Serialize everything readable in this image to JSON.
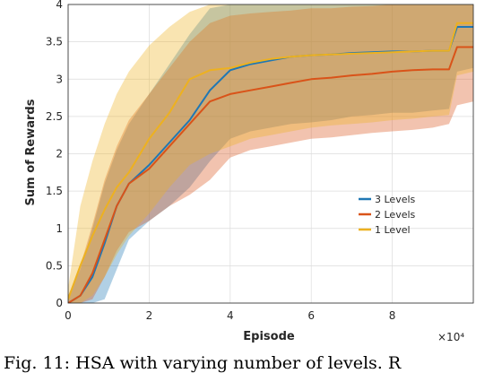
{
  "chart_data": {
    "type": "line",
    "title": "",
    "xlabel": "Episode",
    "ylabel": "Sum of Rewards",
    "x_multiplier_label": "×10⁴",
    "xlim": [
      0,
      10
    ],
    "ylim": [
      0,
      4
    ],
    "xticks": [
      "0",
      "2",
      "4",
      "6",
      "8"
    ],
    "yticks": [
      "0",
      "0.5",
      "1",
      "1.5",
      "2",
      "2.5",
      "3",
      "3.5",
      "4"
    ],
    "grid": true,
    "legend_position": "lower-right",
    "series": [
      {
        "name": "3 Levels",
        "color": "#1f77b4",
        "x": [
          0,
          0.3,
          0.6,
          0.9,
          1.2,
          1.5,
          2.0,
          2.5,
          3.0,
          3.5,
          4.0,
          4.5,
          5.0,
          5.5,
          6.0,
          6.5,
          7.0,
          7.5,
          8.0,
          8.5,
          9.0,
          9.4,
          9.6,
          10.0
        ],
        "y": [
          0.0,
          0.1,
          0.35,
          0.8,
          1.3,
          1.6,
          1.85,
          2.15,
          2.45,
          2.85,
          3.12,
          3.2,
          3.25,
          3.3,
          3.32,
          3.33,
          3.35,
          3.36,
          3.37,
          3.37,
          3.38,
          3.38,
          3.7,
          3.7
        ],
        "upper": [
          0.1,
          0.45,
          1.0,
          1.6,
          2.05,
          2.4,
          2.8,
          3.2,
          3.6,
          3.95,
          4.0,
          4.0,
          4.0,
          4.0,
          4.0,
          4.0,
          4.0,
          4.0,
          4.0,
          4.0,
          4.0,
          4.0,
          4.0,
          4.0
        ],
        "lower": [
          0.0,
          0.0,
          0.0,
          0.05,
          0.45,
          0.85,
          1.1,
          1.3,
          1.55,
          1.9,
          2.2,
          2.3,
          2.35,
          2.4,
          2.42,
          2.45,
          2.5,
          2.52,
          2.55,
          2.55,
          2.58,
          2.6,
          3.1,
          3.15
        ]
      },
      {
        "name": "2 Levels",
        "color": "#d95319",
        "x": [
          0,
          0.3,
          0.6,
          0.9,
          1.2,
          1.5,
          2.0,
          2.5,
          3.0,
          3.5,
          4.0,
          4.5,
          5.0,
          5.5,
          6.0,
          6.5,
          7.0,
          7.5,
          8.0,
          8.5,
          9.0,
          9.4,
          9.6,
          10.0
        ],
        "y": [
          0.0,
          0.1,
          0.4,
          0.85,
          1.3,
          1.6,
          1.8,
          2.1,
          2.4,
          2.7,
          2.8,
          2.85,
          2.9,
          2.95,
          3.0,
          3.02,
          3.05,
          3.07,
          3.1,
          3.12,
          3.13,
          3.13,
          3.43,
          3.43
        ],
        "upper": [
          0.1,
          0.5,
          1.05,
          1.65,
          2.1,
          2.45,
          2.8,
          3.15,
          3.5,
          3.75,
          3.85,
          3.88,
          3.9,
          3.92,
          3.95,
          3.95,
          3.97,
          3.98,
          4.0,
          4.0,
          4.0,
          4.0,
          4.0,
          4.0
        ],
        "lower": [
          0.0,
          0.0,
          0.05,
          0.35,
          0.7,
          0.95,
          1.1,
          1.3,
          1.45,
          1.65,
          1.95,
          2.05,
          2.1,
          2.15,
          2.2,
          2.22,
          2.25,
          2.28,
          2.3,
          2.32,
          2.35,
          2.4,
          2.65,
          2.7
        ]
      },
      {
        "name": "1 Level",
        "color": "#edb120",
        "x": [
          0,
          0.3,
          0.6,
          0.9,
          1.2,
          1.5,
          2.0,
          2.5,
          3.0,
          3.5,
          4.0,
          4.5,
          5.0,
          5.5,
          6.0,
          6.5,
          7.0,
          7.5,
          8.0,
          8.5,
          9.0,
          9.4,
          9.6,
          10.0
        ],
        "y": [
          0.05,
          0.5,
          0.9,
          1.25,
          1.55,
          1.75,
          2.2,
          2.55,
          3.0,
          3.12,
          3.15,
          3.22,
          3.27,
          3.3,
          3.32,
          3.33,
          3.34,
          3.35,
          3.36,
          3.37,
          3.38,
          3.38,
          3.75,
          3.75
        ],
        "upper": [
          0.2,
          1.3,
          1.9,
          2.4,
          2.8,
          3.1,
          3.45,
          3.7,
          3.9,
          4.0,
          4.0,
          4.0,
          4.0,
          4.0,
          4.0,
          4.0,
          4.0,
          4.0,
          4.0,
          4.0,
          4.0,
          4.0,
          4.0,
          4.0
        ],
        "lower": [
          0.0,
          0.0,
          0.1,
          0.35,
          0.65,
          0.9,
          1.2,
          1.55,
          1.85,
          2.0,
          2.1,
          2.2,
          2.25,
          2.3,
          2.35,
          2.38,
          2.4,
          2.42,
          2.45,
          2.47,
          2.5,
          2.52,
          3.05,
          3.1
        ]
      }
    ]
  },
  "caption": {
    "text": "Fig. 11: HSA with varying number of levels. R"
  }
}
